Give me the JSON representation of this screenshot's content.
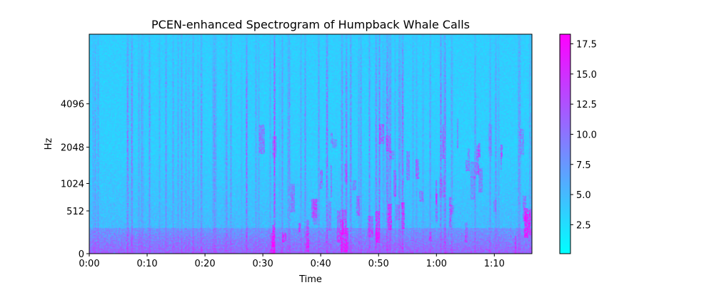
{
  "chart_data": {
    "type": "heatmap",
    "title": "PCEN-enhanced Spectrogram of Humpback Whale Calls",
    "xlabel": "Time",
    "ylabel": "Hz",
    "x_tick_labels": [
      "0:00",
      "0:10",
      "0:20",
      "0:30",
      "0:40",
      "0:50",
      "1:00",
      "1:10"
    ],
    "x_ticks_seconds": [
      0,
      10,
      20,
      30,
      40,
      50,
      60,
      70
    ],
    "xlim_seconds": [
      0,
      76.5
    ],
    "y_scale": "mel",
    "y_tick_labels": [
      "0",
      "512",
      "1024",
      "2048",
      "4096"
    ],
    "y_ticks_hz": [
      0,
      512,
      1024,
      2048,
      4096
    ],
    "colormap": "cool",
    "colormap_colors": [
      "#00ffff",
      "#ff00ff"
    ],
    "colorbar": {
      "tick_labels": [
        "2.5",
        "5.0",
        "7.5",
        "10.0",
        "12.5",
        "15.0",
        "17.5"
      ],
      "ticks": [
        2.5,
        5.0,
        7.5,
        10.0,
        12.5,
        15.0,
        17.5
      ],
      "range": [
        0.1,
        18.3
      ]
    },
    "grid": false
  }
}
